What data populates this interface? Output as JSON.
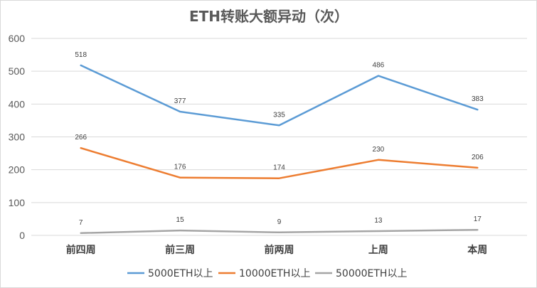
{
  "chart_data": {
    "type": "line",
    "title": "ETH转账大额异动（次）",
    "categories": [
      "前四周",
      "前三周",
      "前两周",
      "上周",
      "本周"
    ],
    "ylim": [
      0,
      600
    ],
    "yticks": [
      0,
      100,
      200,
      300,
      400,
      500,
      600
    ],
    "grid": true,
    "legend_position": "bottom",
    "series": [
      {
        "name": "5000ETH以上",
        "color": "#5b9bd5",
        "values": [
          518,
          377,
          335,
          486,
          383
        ]
      },
      {
        "name": "10000ETH以上",
        "color": "#ed7d31",
        "values": [
          266,
          176,
          174,
          230,
          206
        ]
      },
      {
        "name": "50000ETH以上",
        "color": "#a5a5a5",
        "values": [
          7,
          15,
          9,
          13,
          17
        ]
      }
    ]
  }
}
